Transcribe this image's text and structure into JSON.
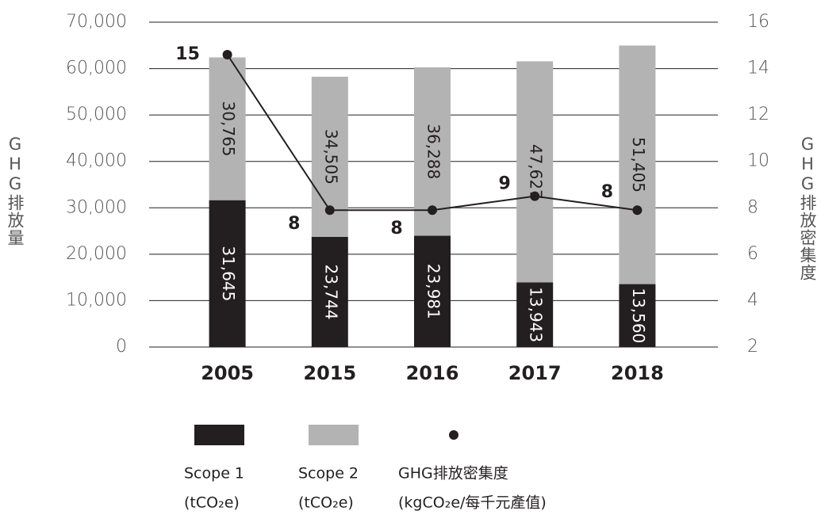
{
  "chart_data": {
    "type": "bar",
    "categories": [
      "2005",
      "2015",
      "2016",
      "2017",
      "2018"
    ],
    "series": [
      {
        "name": "Scope 1",
        "unit": "(tCO₂e)",
        "color": "#231f20",
        "values": [
          31645,
          23744,
          23981,
          13943,
          13560
        ],
        "value_labels": [
          "31,645",
          "23,744",
          "23,981",
          "13,943",
          "13,560"
        ]
      },
      {
        "name": "Scope 2",
        "unit": "(tCO₂e)",
        "color": "#b3b3b3",
        "values": [
          30765,
          34505,
          36288,
          47627,
          51405
        ],
        "value_labels": [
          "30,765",
          "34,505",
          "36,288",
          "47,627",
          "51,405"
        ]
      },
      {
        "name": "GHG排放密集度",
        "unit": "(kgCO₂e/每千元產值)",
        "type": "line",
        "axis": "y2",
        "color": "#231f20",
        "values": [
          14.6,
          7.9,
          7.9,
          8.5,
          7.9
        ],
        "value_labels": [
          "15",
          "8",
          "8",
          "9",
          "8"
        ]
      }
    ],
    "ylabel": "GHG排放量",
    "y2label": "GHG排放密集度",
    "ylim": [
      0,
      70000
    ],
    "yticks": [
      0,
      {
        "value": 10000,
        "label": "10,000"
      },
      {
        "value": 20000,
        "label": "20,000"
      },
      {
        "value": 30000,
        "label": "30,000"
      },
      {
        "value": 40000,
        "label": "40,000"
      },
      {
        "value": 50000,
        "label": "50,000"
      },
      {
        "value": 60000,
        "label": "60,000"
      },
      {
        "value": 70000,
        "label": "70,000"
      }
    ],
    "y2lim": [
      2,
      16
    ],
    "y2ticks": [
      2,
      4,
      6,
      8,
      10,
      12,
      14,
      16
    ],
    "stacked": true,
    "grid": true
  }
}
